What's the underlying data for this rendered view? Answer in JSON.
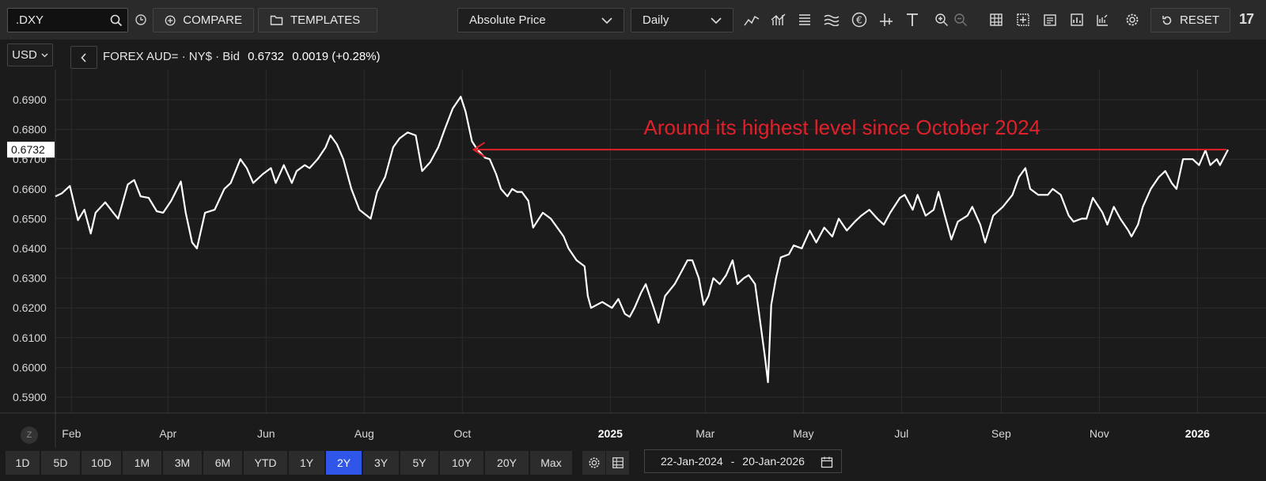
{
  "toolbar": {
    "symbol": ".DXY",
    "compare_label": "COMPARE",
    "templates_label": "TEMPLATES",
    "price_mode": "Absolute Price",
    "interval": "Daily",
    "reset_label": "RESET",
    "logo": "17"
  },
  "header": {
    "currency": "USD",
    "instrument": "FOREX AUD= · NY$ · Bid",
    "price": "0.6732",
    "change": "0.0019 (+0.28%)"
  },
  "ranges": [
    "1D",
    "5D",
    "10D",
    "1M",
    "3M",
    "6M",
    "YTD",
    "1Y",
    "2Y",
    "3Y",
    "5Y",
    "10Y",
    "20Y",
    "Max"
  ],
  "active_range": "2Y",
  "date_range": {
    "start": "22-Jan-2024",
    "sep": "-",
    "end": "20-Jan-2026"
  },
  "z_label": "Z",
  "colors": {
    "background": "#1b1b1b",
    "line": "#ffffff",
    "annotation": "#e0202a",
    "active_range": "#2f56e8"
  },
  "chart_data": {
    "type": "line",
    "ylim": [
      0.589,
      0.6955
    ],
    "xlim": [
      "2024-01-22",
      "2026-01-20"
    ],
    "y_ticks": [
      "0.6900",
      "0.6800",
      "0.6700",
      "0.6600",
      "0.6500",
      "0.6400",
      "0.6300",
      "0.6200",
      "0.6100",
      "0.6000",
      "0.5900"
    ],
    "x_ticks": [
      {
        "label": "Feb",
        "date": "2024-02-01",
        "bold": false
      },
      {
        "label": "Apr",
        "date": "2024-04-01",
        "bold": false
      },
      {
        "label": "Jun",
        "date": "2024-06-01",
        "bold": false
      },
      {
        "label": "Aug",
        "date": "2024-08-01",
        "bold": false
      },
      {
        "label": "Oct",
        "date": "2024-10-01",
        "bold": false
      },
      {
        "label": "2025",
        "date": "2025-01-01",
        "bold": true
      },
      {
        "label": "Mar",
        "date": "2025-03-01",
        "bold": false
      },
      {
        "label": "May",
        "date": "2025-05-01",
        "bold": false
      },
      {
        "label": "Jul",
        "date": "2025-07-01",
        "bold": false
      },
      {
        "label": "Sep",
        "date": "2025-09-01",
        "bold": false
      },
      {
        "label": "Nov",
        "date": "2025-11-01",
        "bold": false
      },
      {
        "label": "2026",
        "date": "2026-01-01",
        "bold": true
      }
    ],
    "grid": true,
    "last_value_label": "0.6732",
    "series": [
      {
        "points": [
          [
            "2024-01-22",
            0.6575
          ],
          [
            "2024-01-26",
            0.6585
          ],
          [
            "2024-01-31",
            0.661
          ],
          [
            "2024-02-05",
            0.6495
          ],
          [
            "2024-02-09",
            0.653
          ],
          [
            "2024-02-13",
            0.645
          ],
          [
            "2024-02-16",
            0.652
          ],
          [
            "2024-02-22",
            0.6555
          ],
          [
            "2024-02-27",
            0.652
          ],
          [
            "2024-03-01",
            0.65
          ],
          [
            "2024-03-07",
            0.6615
          ],
          [
            "2024-03-11",
            0.663
          ],
          [
            "2024-03-15",
            0.6575
          ],
          [
            "2024-03-20",
            0.657
          ],
          [
            "2024-03-25",
            0.6525
          ],
          [
            "2024-03-29",
            0.652
          ],
          [
            "2024-04-03",
            0.656
          ],
          [
            "2024-04-09",
            0.6625
          ],
          [
            "2024-04-12",
            0.652
          ],
          [
            "2024-04-16",
            0.642
          ],
          [
            "2024-04-19",
            0.64
          ],
          [
            "2024-04-24",
            0.652
          ],
          [
            "2024-04-30",
            0.653
          ],
          [
            "2024-05-06",
            0.66
          ],
          [
            "2024-05-10",
            0.662
          ],
          [
            "2024-05-16",
            0.67
          ],
          [
            "2024-05-20",
            0.667
          ],
          [
            "2024-05-24",
            0.662
          ],
          [
            "2024-05-30",
            0.665
          ],
          [
            "2024-06-04",
            0.667
          ],
          [
            "2024-06-07",
            0.662
          ],
          [
            "2024-06-12",
            0.668
          ],
          [
            "2024-06-17",
            0.662
          ],
          [
            "2024-06-20",
            0.666
          ],
          [
            "2024-06-25",
            0.668
          ],
          [
            "2024-06-28",
            0.667
          ],
          [
            "2024-07-03",
            0.67
          ],
          [
            "2024-07-08",
            0.674
          ],
          [
            "2024-07-11",
            0.678
          ],
          [
            "2024-07-15",
            0.675
          ],
          [
            "2024-07-19",
            0.67
          ],
          [
            "2024-07-24",
            0.66
          ],
          [
            "2024-07-29",
            0.653
          ],
          [
            "2024-08-05",
            0.65
          ],
          [
            "2024-08-09",
            0.659
          ],
          [
            "2024-08-14",
            0.664
          ],
          [
            "2024-08-19",
            0.674
          ],
          [
            "2024-08-23",
            0.677
          ],
          [
            "2024-08-28",
            0.679
          ],
          [
            "2024-09-02",
            0.678
          ],
          [
            "2024-09-06",
            0.666
          ],
          [
            "2024-09-11",
            0.669
          ],
          [
            "2024-09-16",
            0.674
          ],
          [
            "2024-09-20",
            0.68
          ],
          [
            "2024-09-25",
            0.687
          ],
          [
            "2024-09-30",
            0.691
          ],
          [
            "2024-10-03",
            0.686
          ],
          [
            "2024-10-07",
            0.676
          ],
          [
            "2024-10-10",
            0.6735
          ],
          [
            "2024-10-15",
            0.6705
          ],
          [
            "2024-10-18",
            0.67
          ],
          [
            "2024-10-22",
            0.665
          ],
          [
            "2024-10-25",
            0.66
          ],
          [
            "2024-10-29",
            0.6575
          ],
          [
            "2024-11-01",
            0.66
          ],
          [
            "2024-11-04",
            0.659
          ],
          [
            "2024-11-07",
            0.659
          ],
          [
            "2024-11-11",
            0.656
          ],
          [
            "2024-11-14",
            0.647
          ],
          [
            "2024-11-20",
            0.652
          ],
          [
            "2024-11-25",
            0.65
          ],
          [
            "2024-11-29",
            0.647
          ],
          [
            "2024-12-03",
            0.644
          ],
          [
            "2024-12-06",
            0.64
          ],
          [
            "2024-12-11",
            0.636
          ],
          [
            "2024-12-16",
            0.634
          ],
          [
            "2024-12-18",
            0.624
          ],
          [
            "2024-12-20",
            0.62
          ],
          [
            "2024-12-27",
            0.622
          ],
          [
            "2025-01-02",
            0.62
          ],
          [
            "2025-01-06",
            0.623
          ],
          [
            "2025-01-10",
            0.618
          ],
          [
            "2025-01-13",
            0.617
          ],
          [
            "2025-01-16",
            0.62
          ],
          [
            "2025-01-20",
            0.625
          ],
          [
            "2025-01-23",
            0.628
          ],
          [
            "2025-01-28",
            0.62
          ],
          [
            "2025-01-31",
            0.615
          ],
          [
            "2025-02-04",
            0.624
          ],
          [
            "2025-02-10",
            0.628
          ],
          [
            "2025-02-14",
            0.632
          ],
          [
            "2025-02-18",
            0.636
          ],
          [
            "2025-02-21",
            0.636
          ],
          [
            "2025-02-25",
            0.63
          ],
          [
            "2025-02-28",
            0.621
          ],
          [
            "2025-03-03",
            0.624
          ],
          [
            "2025-03-06",
            0.63
          ],
          [
            "2025-03-10",
            0.628
          ],
          [
            "2025-03-14",
            0.631
          ],
          [
            "2025-03-18",
            0.636
          ],
          [
            "2025-03-21",
            0.628
          ],
          [
            "2025-03-25",
            0.63
          ],
          [
            "2025-03-28",
            0.631
          ],
          [
            "2025-04-01",
            0.628
          ],
          [
            "2025-04-03",
            0.62
          ],
          [
            "2025-04-07",
            0.604
          ],
          [
            "2025-04-09",
            0.595
          ],
          [
            "2025-04-11",
            0.621
          ],
          [
            "2025-04-14",
            0.63
          ],
          [
            "2025-04-17",
            0.637
          ],
          [
            "2025-04-22",
            0.638
          ],
          [
            "2025-04-25",
            0.641
          ],
          [
            "2025-04-30",
            0.64
          ],
          [
            "2025-05-05",
            0.646
          ],
          [
            "2025-05-09",
            0.642
          ],
          [
            "2025-05-14",
            0.647
          ],
          [
            "2025-05-19",
            0.644
          ],
          [
            "2025-05-23",
            0.65
          ],
          [
            "2025-05-28",
            0.646
          ],
          [
            "2025-06-02",
            0.649
          ],
          [
            "2025-06-06",
            0.651
          ],
          [
            "2025-06-11",
            0.653
          ],
          [
            "2025-06-16",
            0.65
          ],
          [
            "2025-06-20",
            0.648
          ],
          [
            "2025-06-24",
            0.652
          ],
          [
            "2025-06-30",
            0.657
          ],
          [
            "2025-07-03",
            0.658
          ],
          [
            "2025-07-08",
            0.653
          ],
          [
            "2025-07-11",
            0.658
          ],
          [
            "2025-07-16",
            0.651
          ],
          [
            "2025-07-21",
            0.653
          ],
          [
            "2025-07-24",
            0.659
          ],
          [
            "2025-07-29",
            0.649
          ],
          [
            "2025-08-01",
            0.643
          ],
          [
            "2025-08-05",
            0.649
          ],
          [
            "2025-08-11",
            0.651
          ],
          [
            "2025-08-14",
            0.654
          ],
          [
            "2025-08-19",
            0.648
          ],
          [
            "2025-08-22",
            0.642
          ],
          [
            "2025-08-27",
            0.651
          ],
          [
            "2025-09-02",
            0.654
          ],
          [
            "2025-09-08",
            0.658
          ],
          [
            "2025-09-12",
            0.664
          ],
          [
            "2025-09-16",
            0.667
          ],
          [
            "2025-09-19",
            0.66
          ],
          [
            "2025-09-24",
            0.658
          ],
          [
            "2025-09-30",
            0.658
          ],
          [
            "2025-10-03",
            0.66
          ],
          [
            "2025-10-08",
            0.658
          ],
          [
            "2025-10-13",
            0.651
          ],
          [
            "2025-10-16",
            0.649
          ],
          [
            "2025-10-21",
            0.65
          ],
          [
            "2025-10-24",
            0.65
          ],
          [
            "2025-10-28",
            0.657
          ],
          [
            "2025-11-03",
            0.652
          ],
          [
            "2025-11-06",
            0.648
          ],
          [
            "2025-11-10",
            0.654
          ],
          [
            "2025-11-14",
            0.65
          ],
          [
            "2025-11-19",
            0.646
          ],
          [
            "2025-11-21",
            0.644
          ],
          [
            "2025-11-25",
            0.648
          ],
          [
            "2025-11-28",
            0.654
          ],
          [
            "2025-12-03",
            0.66
          ],
          [
            "2025-12-08",
            0.664
          ],
          [
            "2025-12-12",
            0.666
          ],
          [
            "2025-12-16",
            0.662
          ],
          [
            "2025-12-19",
            0.66
          ],
          [
            "2025-12-23",
            0.67
          ],
          [
            "2025-12-29",
            0.67
          ],
          [
            "2026-01-02",
            0.668
          ],
          [
            "2026-01-06",
            0.673
          ],
          [
            "2026-01-09",
            0.668
          ],
          [
            "2026-01-13",
            0.67
          ],
          [
            "2026-01-15",
            0.668
          ],
          [
            "2026-01-20",
            0.6732
          ]
        ]
      }
    ],
    "annotation": {
      "text": "Around its highest level since October 2024",
      "value": 0.6732,
      "from_date": "2024-10-08",
      "to_date": "2026-01-19"
    }
  }
}
